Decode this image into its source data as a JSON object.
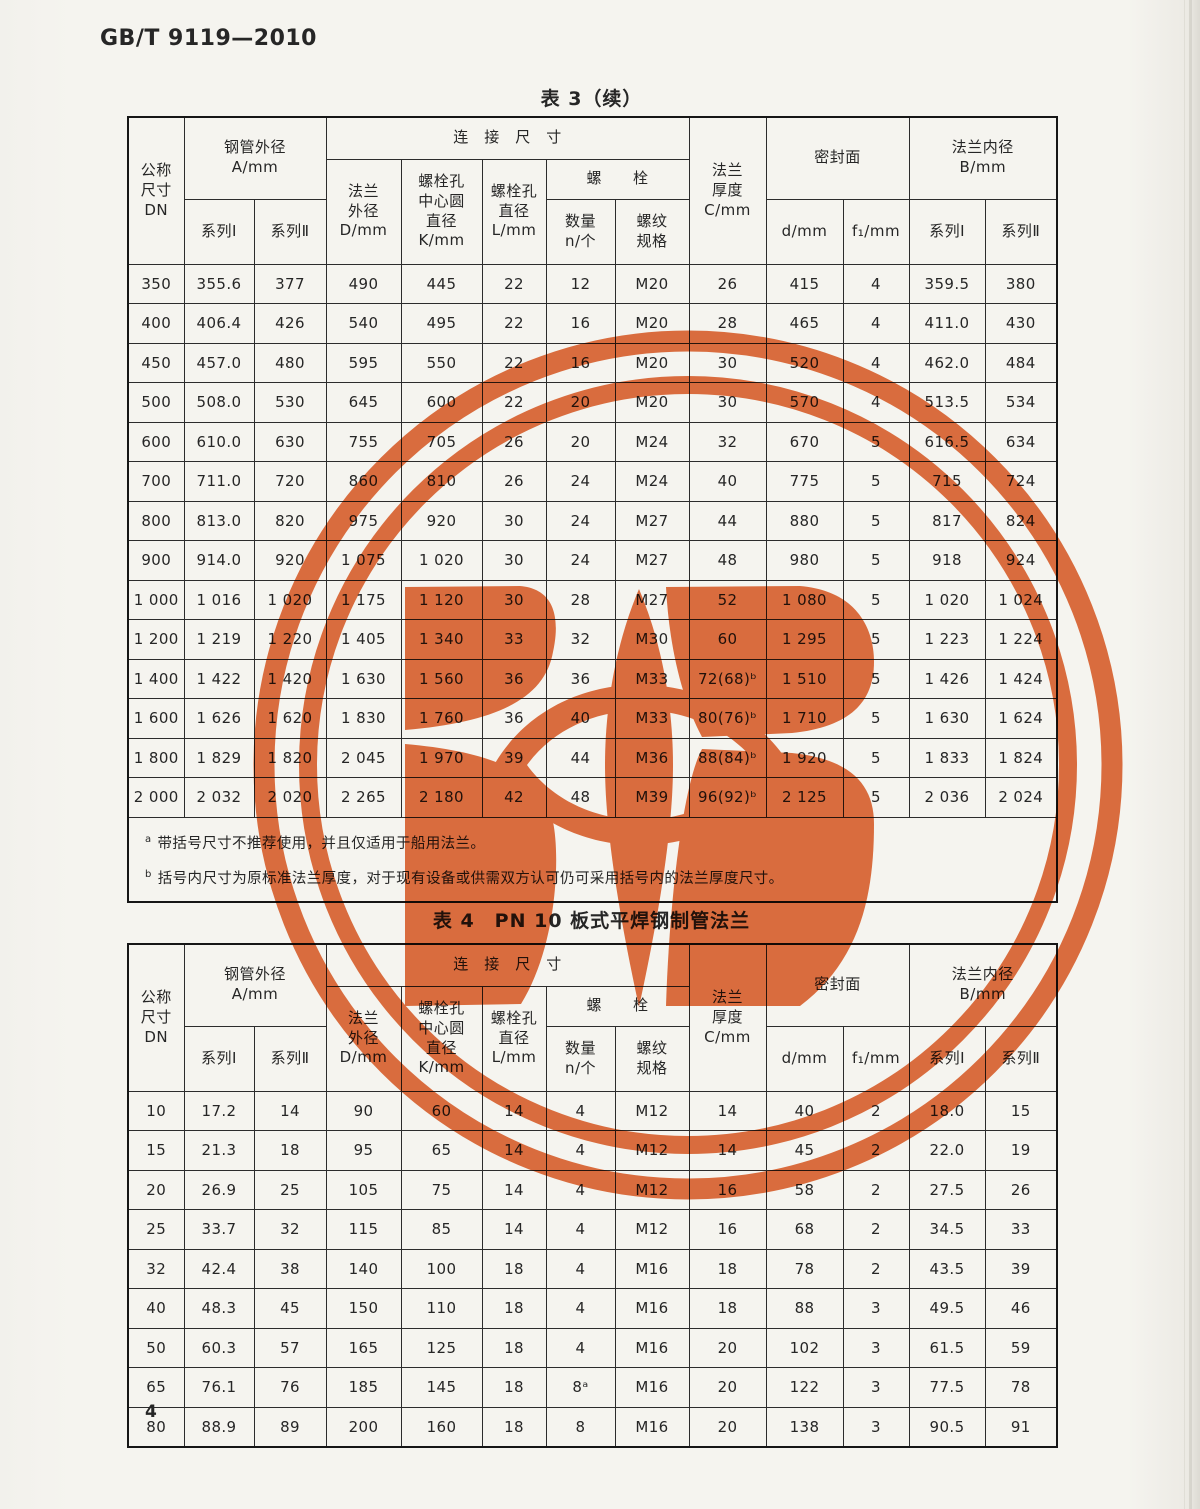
{
  "page": {
    "doc_number": "GB/T 9119—2010",
    "page_number": "4"
  },
  "colors": {
    "stamp": "#dd5a22"
  },
  "hdr": {
    "dn": "公称\n尺寸\nDN",
    "pipe_od": "钢管外径\nA/mm",
    "series1": "系列Ⅰ",
    "series2": "系列Ⅱ",
    "conn": "连　接　尺　寸",
    "flange_od": "法兰\n外径\nD/mm",
    "bolt_circle": "螺栓孔\n中心圆\n直径\nK/mm",
    "bolt_hole": "螺栓孔\n直径\nL/mm",
    "bolt": "螺　　栓",
    "qty": "数量\nn/个",
    "thread": "螺纹\n规格",
    "thickness": "法兰\n厚度\nC/mm",
    "seal": "密封面",
    "d_mm": "d/mm",
    "f1_mm": "f₁/mm",
    "bore": "法兰内径\nB/mm"
  },
  "table3": {
    "title": "表 3（续）",
    "rows": [
      [
        "350",
        "355.6",
        "377",
        "490",
        "445",
        "22",
        "12",
        "M20",
        "26",
        "415",
        "4",
        "359.5",
        "380"
      ],
      [
        "400",
        "406.4",
        "426",
        "540",
        "495",
        "22",
        "16",
        "M20",
        "28",
        "465",
        "4",
        "411.0",
        "430"
      ],
      [
        "450",
        "457.0",
        "480",
        "595",
        "550",
        "22",
        "16",
        "M20",
        "30",
        "520",
        "4",
        "462.0",
        "484"
      ],
      [
        "500",
        "508.0",
        "530",
        "645",
        "600",
        "22",
        "20",
        "M20",
        "30",
        "570",
        "4",
        "513.5",
        "534"
      ],
      [
        "600",
        "610.0",
        "630",
        "755",
        "705",
        "26",
        "20",
        "M24",
        "32",
        "670",
        "5",
        "616.5",
        "634"
      ],
      [
        "700",
        "711.0",
        "720",
        "860",
        "810",
        "26",
        "24",
        "M24",
        "40",
        "775",
        "5",
        "715",
        "724"
      ],
      [
        "800",
        "813.0",
        "820",
        "975",
        "920",
        "30",
        "24",
        "M27",
        "44",
        "880",
        "5",
        "817",
        "824"
      ],
      [
        "900",
        "914.0",
        "920",
        "1 075",
        "1 020",
        "30",
        "24",
        "M27",
        "48",
        "980",
        "5",
        "918",
        "924"
      ],
      [
        "1 000",
        "1 016",
        "1 020",
        "1 175",
        "1 120",
        "30",
        "28",
        "M27",
        "52",
        "1 080",
        "5",
        "1 020",
        "1 024"
      ],
      [
        "1 200",
        "1 219",
        "1 220",
        "1 405",
        "1 340",
        "33",
        "32",
        "M30",
        "60",
        "1 295",
        "5",
        "1 223",
        "1 224"
      ],
      [
        "1 400",
        "1 422",
        "1 420",
        "1 630",
        "1 560",
        "36",
        "36",
        "M33",
        "72(68)ᵇ",
        "1 510",
        "5",
        "1 426",
        "1 424"
      ],
      [
        "1 600",
        "1 626",
        "1 620",
        "1 830",
        "1 760",
        "36",
        "40",
        "M33",
        "80(76)ᵇ",
        "1 710",
        "5",
        "1 630",
        "1 624"
      ],
      [
        "1 800",
        "1 829",
        "1 820",
        "2 045",
        "1 970",
        "39",
        "44",
        "M36",
        "88(84)ᵇ",
        "1 920",
        "5",
        "1 833",
        "1 824"
      ],
      [
        "2 000",
        "2 032",
        "2 020",
        "2 265",
        "2 180",
        "42",
        "48",
        "M39",
        "96(92)ᵇ",
        "2 125",
        "5",
        "2 036",
        "2 024"
      ]
    ],
    "footnotes": [
      {
        "marker": "a",
        "text": "带括号尺寸不推荐使用，并且仅适用于船用法兰。"
      },
      {
        "marker": "b",
        "text": "括号内尺寸为原标准法兰厚度，对于现有设备或供需双方认可仍可采用括号内的法兰厚度尺寸。"
      }
    ]
  },
  "table4": {
    "title": "表 4　PN 10 板式平焊钢制管法兰",
    "rows": [
      [
        "10",
        "17.2",
        "14",
        "90",
        "60",
        "14",
        "4",
        "M12",
        "14",
        "40",
        "2",
        "18.0",
        "15"
      ],
      [
        "15",
        "21.3",
        "18",
        "95",
        "65",
        "14",
        "4",
        "M12",
        "14",
        "45",
        "2",
        "22.0",
        "19"
      ],
      [
        "20",
        "26.9",
        "25",
        "105",
        "75",
        "14",
        "4",
        "M12",
        "16",
        "58",
        "2",
        "27.5",
        "26"
      ],
      [
        "25",
        "33.7",
        "32",
        "115",
        "85",
        "14",
        "4",
        "M12",
        "16",
        "68",
        "2",
        "34.5",
        "33"
      ],
      [
        "32",
        "42.4",
        "38",
        "140",
        "100",
        "18",
        "4",
        "M16",
        "18",
        "78",
        "2",
        "43.5",
        "39"
      ],
      [
        "40",
        "48.3",
        "45",
        "150",
        "110",
        "18",
        "4",
        "M16",
        "18",
        "88",
        "3",
        "49.5",
        "46"
      ],
      [
        "50",
        "60.3",
        "57",
        "165",
        "125",
        "18",
        "4",
        "M16",
        "20",
        "102",
        "3",
        "61.5",
        "59"
      ],
      [
        "65",
        "76.1",
        "76",
        "185",
        "145",
        "18",
        "8ᵃ",
        "M16",
        "20",
        "122",
        "3",
        "77.5",
        "78"
      ],
      [
        "80",
        "88.9",
        "89",
        "200",
        "160",
        "18",
        "8",
        "M16",
        "20",
        "138",
        "3",
        "90.5",
        "91"
      ]
    ]
  }
}
